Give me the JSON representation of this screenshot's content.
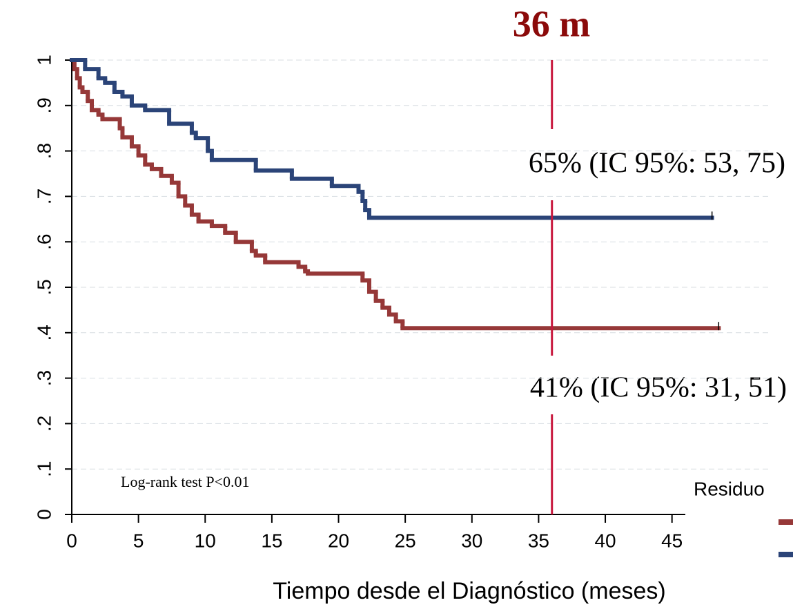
{
  "chart_data": {
    "type": "step",
    "title": "36 m",
    "x_label": "Tiempo desde el Diagnóstico (meses)",
    "xlim": [
      0,
      46
    ],
    "ylim": [
      0,
      1
    ],
    "xticks": [
      0,
      5,
      10,
      15,
      20,
      25,
      30,
      35,
      40,
      45
    ],
    "yticks": [
      0,
      {
        "value": 0.1,
        "label": ".1"
      },
      {
        "value": 0.2,
        "label": ".2"
      },
      {
        "value": 0.3,
        "label": ".3"
      },
      {
        "value": 0.4,
        "label": ".4"
      },
      {
        "value": 0.5,
        "label": ".5"
      },
      {
        "value": 0.6,
        "label": ".6"
      },
      {
        "value": 0.7,
        "label": ".7"
      },
      {
        "value": 0.8,
        "label": ".8"
      },
      {
        "value": 0.9,
        "label": ".9"
      },
      1
    ],
    "grid": true,
    "vline": {
      "x": 36,
      "color": "#c8163c"
    },
    "annotations": [
      "65% (IC 95%: 53, 75)",
      "41% (IC 95%: 31, 51)",
      "Log-rank test P<0.01"
    ],
    "legend_title": "Residuo",
    "series": [
      {
        "color": "#963838",
        "x": [
          0,
          0.2,
          0.4,
          0.6,
          0.8,
          1.2,
          1.5,
          2,
          2.3,
          3.6,
          3.8,
          4.5,
          5,
          5.5,
          6,
          6.7,
          7.5,
          8,
          8.5,
          9,
          9.5,
          10.5,
          11.5,
          12.3,
          13.5,
          13.8,
          14.5,
          17,
          17.5,
          17.7,
          21.8,
          22.3,
          22.8,
          23.3,
          23.8,
          24.3,
          24.8,
          48.5
        ],
        "values": [
          1,
          0.98,
          0.96,
          0.94,
          0.93,
          0.91,
          0.89,
          0.88,
          0.87,
          0.85,
          0.83,
          0.81,
          0.79,
          0.77,
          0.76,
          0.745,
          0.73,
          0.7,
          0.68,
          0.66,
          0.645,
          0.635,
          0.62,
          0.6,
          0.58,
          0.57,
          0.555,
          0.545,
          0.535,
          0.53,
          0.515,
          0.49,
          0.47,
          0.455,
          0.44,
          0.425,
          0.41,
          0.41
        ]
      },
      {
        "color": "#2b4478",
        "x": [
          0,
          1,
          2,
          2.5,
          3.2,
          3.8,
          4.5,
          5.5,
          7.3,
          9,
          9.3,
          10.2,
          10.5,
          13.8,
          16.5,
          19.5,
          21.5,
          21.8,
          22,
          22.3,
          48
        ],
        "values": [
          1,
          0.98,
          0.96,
          0.95,
          0.93,
          0.92,
          0.9,
          0.89,
          0.86,
          0.84,
          0.828,
          0.8,
          0.78,
          0.757,
          0.739,
          0.723,
          0.71,
          0.69,
          0.67,
          0.653,
          0.653
        ]
      }
    ]
  }
}
